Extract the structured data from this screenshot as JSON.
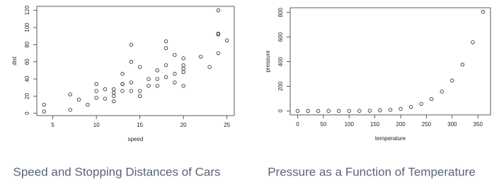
{
  "chart_data": [
    {
      "type": "scatter",
      "caption": "Speed and Stopping Distances of Cars",
      "xlabel": "speed",
      "ylabel": "dist",
      "color": "#222222",
      "x": [
        4,
        4,
        7,
        7,
        8,
        9,
        10,
        10,
        10,
        11,
        11,
        12,
        12,
        12,
        12,
        13,
        13,
        13,
        13,
        14,
        14,
        14,
        14,
        15,
        15,
        15,
        16,
        16,
        17,
        17,
        17,
        18,
        18,
        18,
        18,
        19,
        19,
        19,
        20,
        20,
        20,
        20,
        20,
        22,
        23,
        24,
        24,
        24,
        24,
        25
      ],
      "values": [
        2,
        10,
        4,
        22,
        16,
        10,
        18,
        26,
        34,
        17,
        28,
        14,
        20,
        24,
        28,
        26,
        34,
        34,
        46,
        26,
        36,
        60,
        80,
        20,
        26,
        54,
        32,
        40,
        32,
        40,
        50,
        42,
        56,
        76,
        84,
        36,
        46,
        68,
        32,
        48,
        52,
        56,
        64,
        66,
        54,
        70,
        92,
        93,
        120,
        85
      ],
      "xlim": [
        3.16,
        25.84
      ],
      "ylim": [
        -2.72,
        124.72
      ],
      "xticks": [
        5,
        10,
        15,
        20,
        25
      ],
      "yticks": [
        0,
        20,
        40,
        60,
        80,
        100,
        120
      ]
    },
    {
      "type": "scatter",
      "caption": "Pressure as a Function of Temperature",
      "xlabel": "temperature",
      "ylabel": "pressure",
      "color": "#222222",
      "x": [
        0,
        20,
        40,
        60,
        80,
        100,
        120,
        140,
        160,
        180,
        200,
        220,
        240,
        260,
        280,
        300,
        320,
        340,
        360
      ],
      "values": [
        0.0002,
        0.0012,
        0.006,
        0.03,
        0.09,
        0.27,
        0.75,
        1.85,
        4.2,
        8.8,
        17.3,
        32.1,
        57,
        96,
        157,
        247,
        376,
        558,
        806
      ],
      "xlim": [
        -14.4,
        374.4
      ],
      "ylim": [
        -32.24,
        838.24
      ],
      "xticks": [
        0,
        50,
        100,
        150,
        200,
        250,
        300,
        350
      ],
      "yticks": [
        0,
        200,
        400,
        600,
        800
      ]
    }
  ]
}
